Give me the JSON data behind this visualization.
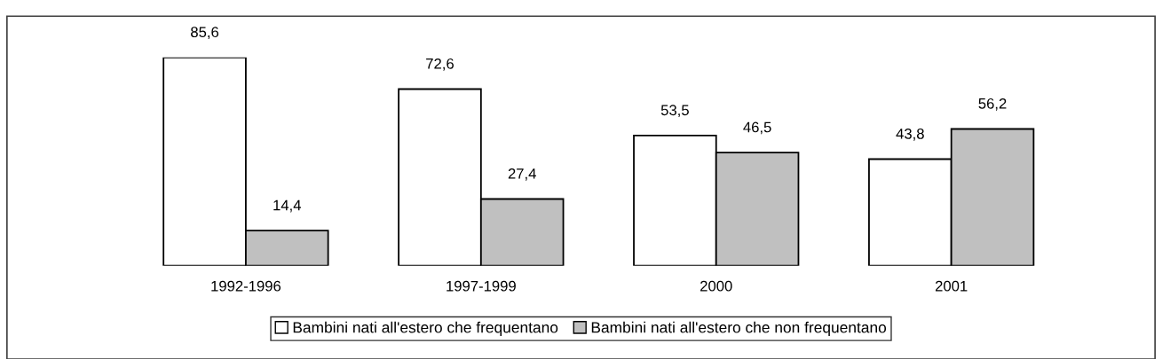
{
  "chart_data": {
    "type": "bar",
    "categories": [
      "1992-1996",
      "1997-1999",
      "2000",
      "2001"
    ],
    "series": [
      {
        "name": "Bambini nati all'estero che frequentano",
        "color": "#ffffff",
        "values": [
          85.6,
          72.6,
          53.5,
          43.8
        ],
        "value_labels": [
          "85,6",
          "72,6",
          "53,5",
          "43,8"
        ]
      },
      {
        "name": "Bambini nati all'estero che non frequentano",
        "color": "#c0c0c0",
        "values": [
          14.4,
          27.4,
          46.5,
          56.2
        ],
        "value_labels": [
          "14,4",
          "27,4",
          "46,5",
          "56,2"
        ]
      }
    ],
    "legend": "bottom"
  }
}
